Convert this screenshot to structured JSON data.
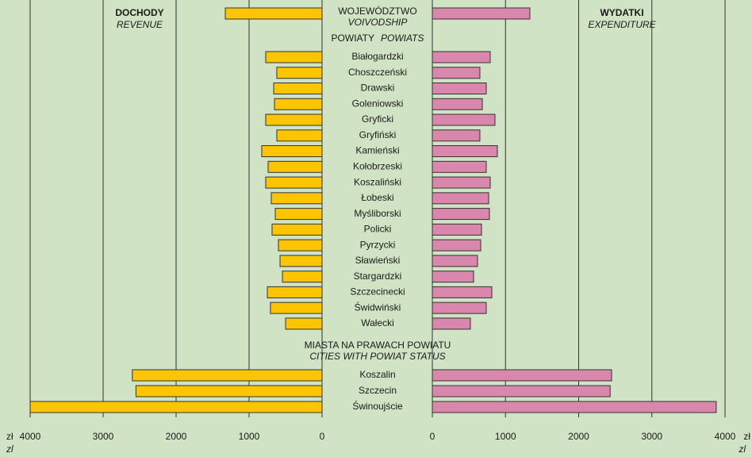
{
  "chart_data": {
    "type": "butterfly",
    "revenue": {
      "name": "DOCHODY",
      "name_en": "REVENUE",
      "color": "#fcc500"
    },
    "expenditure": {
      "name": "WYDATKI",
      "name_en": "EXPENDITURE",
      "color": "#d987ad"
    },
    "xlim": [
      0,
      4000
    ],
    "xticks": [
      0,
      1000,
      2000,
      3000,
      4000
    ],
    "unit": "zł",
    "unit_en": "zl",
    "grid": true,
    "sections": [
      {
        "title": "WOJEWÓDZTWO",
        "title_en": "VOIVODSHIP",
        "categories": [
          null
        ],
        "revenue": [
          1326
        ],
        "expenditure": [
          1333
        ]
      },
      {
        "title": "POWIATY",
        "title_en": "POWIATS",
        "categories": [
          "Białogardzki",
          "Choszczeński",
          "Drawski",
          "Goleniowski",
          "Gryficki",
          "Gryfiński",
          "Kamieński",
          "Kołobrzeski",
          "Koszaliński",
          "Łobeski",
          "Myśliborski",
          "Policki",
          "Pyrzycki",
          "Sławieński",
          "Stargardzki",
          "Szczecinecki",
          "Świdwiński",
          "Wałecki"
        ],
        "revenue": [
          772,
          620,
          663,
          652,
          772,
          620,
          826,
          739,
          772,
          696,
          641,
          685,
          598,
          576,
          543,
          750,
          707,
          500
        ],
        "expenditure": [
          791,
          650,
          737,
          683,
          856,
          650,
          889,
          737,
          791,
          770,
          780,
          672,
          661,
          618,
          564,
          813,
          737,
          520
        ]
      },
      {
        "title": "MIASTA NA PRAWACH POWIATU",
        "title_en": "CITIES WITH POWIAT STATUS",
        "categories": [
          "Koszalin",
          "Szczecin",
          "Świnoujście"
        ],
        "revenue": [
          2600,
          2550,
          4000
        ],
        "expenditure": [
          2450,
          2430,
          3880
        ]
      }
    ]
  }
}
